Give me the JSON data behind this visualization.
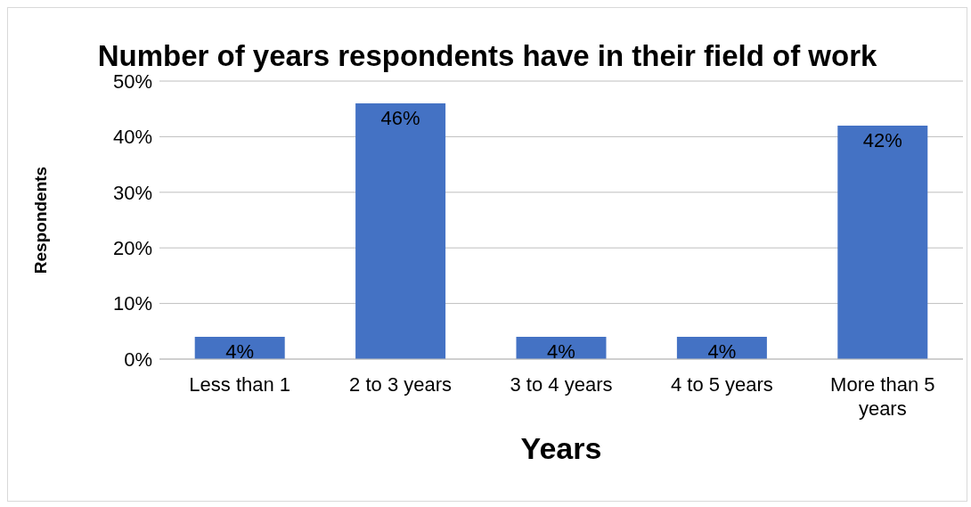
{
  "chart_data": {
    "type": "bar",
    "title": "Number of years respondents have in their field of work",
    "xlabel": "Years",
    "ylabel": "Respondents",
    "categories": [
      "Less than 1",
      "2  to 3 years",
      "3 to 4 years",
      "4 to 5 years",
      "More than 5 years"
    ],
    "values": [
      4,
      46,
      4,
      4,
      42
    ],
    "value_labels": [
      "4%",
      "46%",
      "4%",
      "4%",
      "42%"
    ],
    "color": "#4472c4",
    "ylim": [
      0,
      50
    ],
    "yticks": [
      {
        "value": 0,
        "label": "0%"
      },
      {
        "value": 10,
        "label": "10%"
      },
      {
        "value": 20,
        "label": "20%"
      },
      {
        "value": 30,
        "label": "30%"
      },
      {
        "value": 40,
        "label": "40%"
      },
      {
        "value": 50,
        "label": "50%"
      }
    ],
    "grid": "y",
    "legend": false
  }
}
